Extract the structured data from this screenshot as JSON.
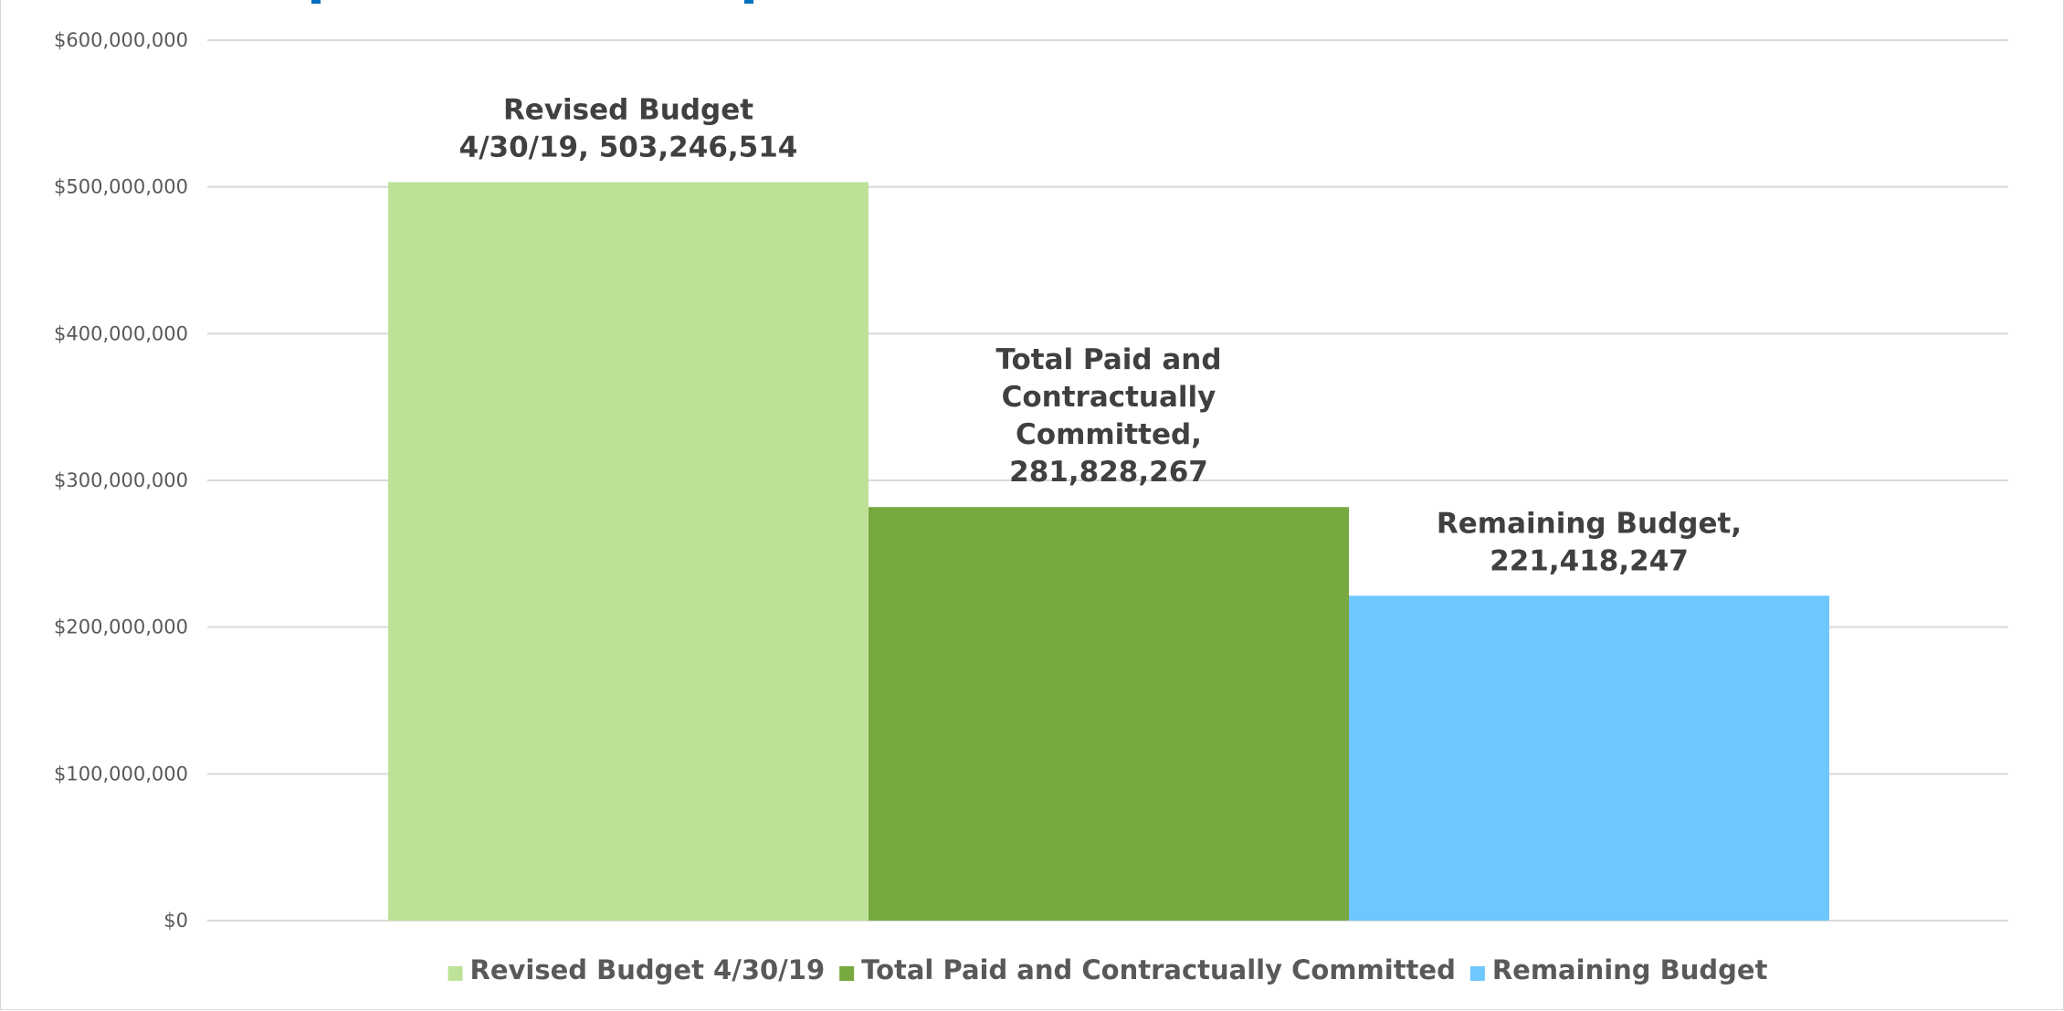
{
  "chart_data": {
    "type": "bar",
    "title": "",
    "xlabel": "",
    "ylabel": "",
    "ylim": [
      0,
      600000000
    ],
    "y_ticks": [
      0,
      100000000,
      200000000,
      300000000,
      400000000,
      500000000,
      600000000
    ],
    "y_tick_labels": [
      "$0",
      "$100,000,000",
      "$200,000,000",
      "$300,000,000",
      "$400,000,000",
      "$500,000,000",
      "$600,000,000"
    ],
    "grid": true,
    "legend_position": "bottom",
    "series": [
      {
        "name": "Revised Budget 4/30/19",
        "value": 503246514,
        "color": "#bde297",
        "data_label": [
          "Revised Budget",
          "4/30/19,   503,246,514"
        ]
      },
      {
        "name": "Total Paid and Contractually Committed",
        "value": 281828267,
        "color": "#78a840",
        "data_label": [
          "Total Paid and",
          "Contractually",
          "Committed,",
          "281,828,267"
        ]
      },
      {
        "name": "Remaining Budget",
        "value": 221418247,
        "color": "#6fc8fd",
        "data_label": [
          "Remaining Budget,",
          "221,418,247"
        ]
      }
    ]
  },
  "colors": {
    "gridline": "#d9d9d9",
    "tick_text": "#595959",
    "label_text": "#404040",
    "cut_title": "#0070c0"
  }
}
